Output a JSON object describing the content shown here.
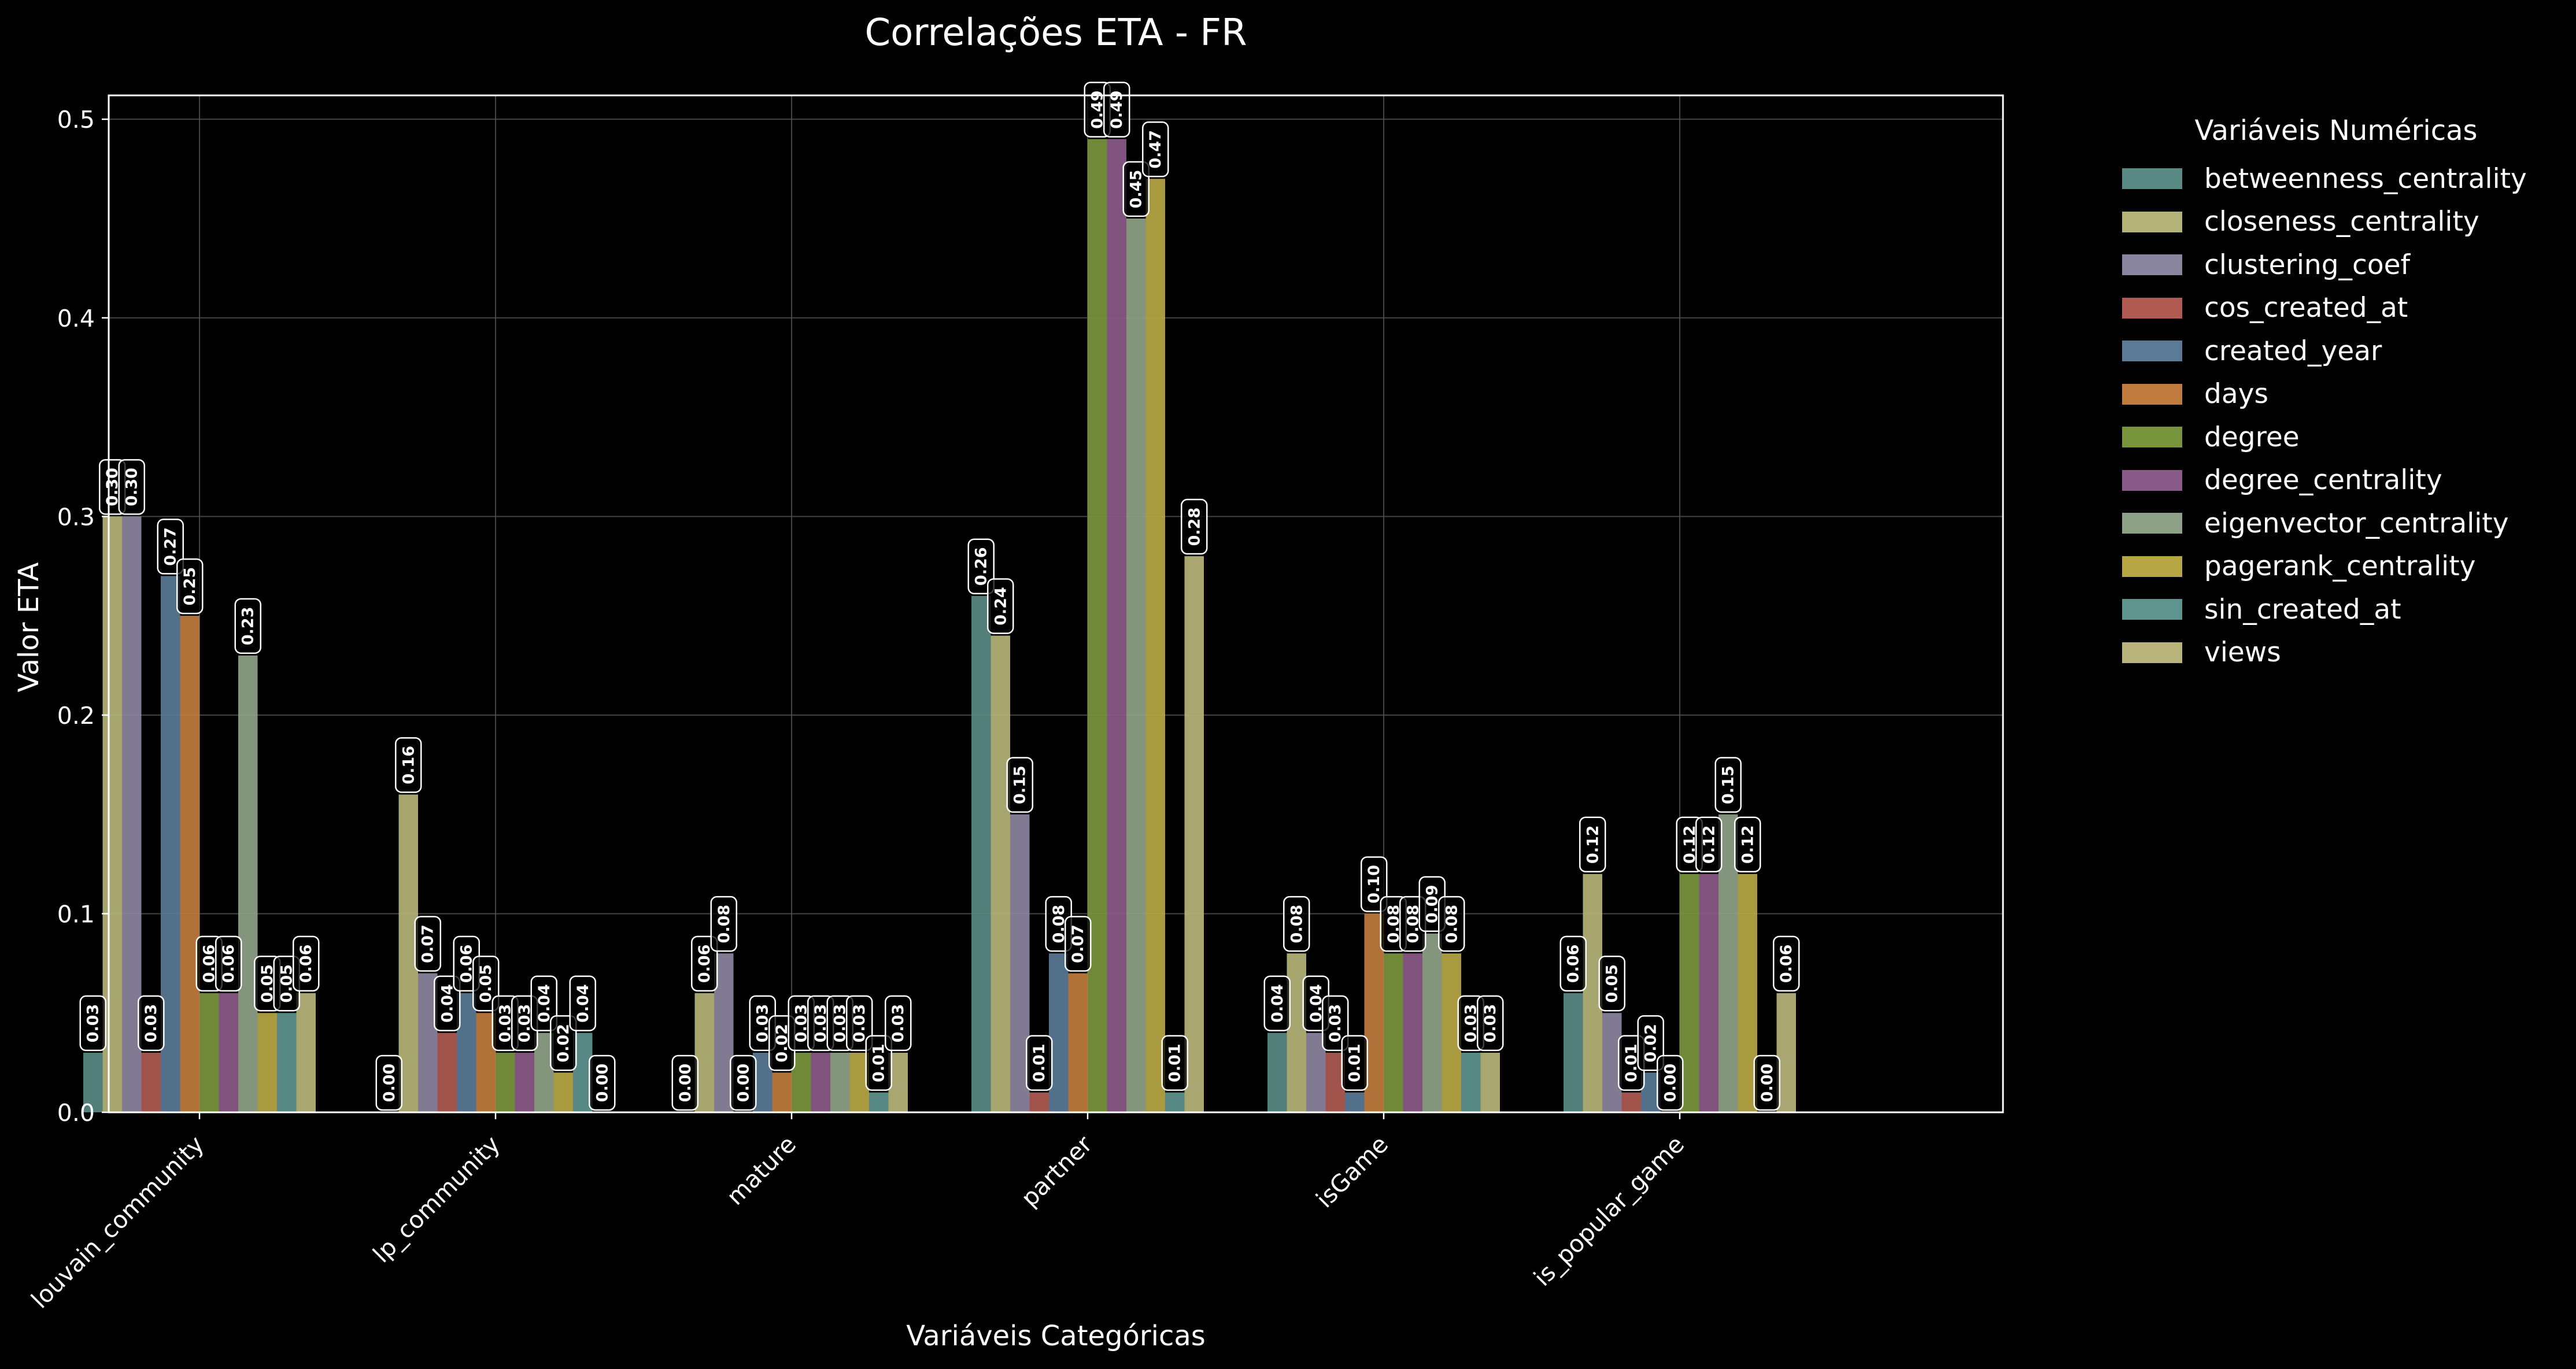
{
  "chart_data": {
    "type": "bar",
    "title": "Correlações ETA - FR",
    "xlabel": "Variáveis Categóricas",
    "ylabel": "Valor ETA",
    "ylim": [
      0,
      0.512
    ],
    "yticks": [
      "0.0",
      "0.1",
      "0.2",
      "0.3",
      "0.4",
      "0.5"
    ],
    "grid": true,
    "legend_title": "Variáveis Numéricas",
    "legend_position": "outside-right",
    "categories": [
      "louvain_community",
      "lp_community",
      "mature",
      "partner",
      "isGame",
      "is_popular_game"
    ],
    "series": [
      {
        "name": "betweenness_centrality",
        "color": "#5a8a84",
        "values": [
          0.03,
          0.0,
          0.0,
          0.26,
          0.04,
          0.06
        ]
      },
      {
        "name": "closeness_centrality",
        "color": "#b5b478",
        "values": [
          0.3,
          0.16,
          0.06,
          0.24,
          0.08,
          0.12
        ]
      },
      {
        "name": "clustering_coef",
        "color": "#8b86a0",
        "values": [
          0.3,
          0.07,
          0.08,
          0.15,
          0.04,
          0.05
        ]
      },
      {
        "name": "cos_created_at",
        "color": "#b05a52",
        "values": [
          0.03,
          0.04,
          0.0,
          0.01,
          0.03,
          0.01
        ]
      },
      {
        "name": "created_year",
        "color": "#5a7a96",
        "values": [
          0.27,
          0.06,
          0.03,
          0.08,
          0.01,
          0.02
        ]
      },
      {
        "name": "days",
        "color": "#c07c3e",
        "values": [
          0.25,
          0.05,
          0.02,
          0.07,
          0.1,
          0.0
        ]
      },
      {
        "name": "degree",
        "color": "#78953e",
        "values": [
          0.06,
          0.03,
          0.03,
          0.49,
          0.08,
          0.12
        ]
      },
      {
        "name": "degree_centrality",
        "color": "#8a5a88",
        "values": [
          0.06,
          0.03,
          0.03,
          0.49,
          0.08,
          0.12
        ]
      },
      {
        "name": "eigenvector_centrality",
        "color": "#8ea288",
        "values": [
          0.23,
          0.04,
          0.03,
          0.45,
          0.09,
          0.15
        ]
      },
      {
        "name": "pagerank_centrality",
        "color": "#b7a644",
        "values": [
          0.05,
          0.02,
          0.03,
          0.47,
          0.08,
          0.12
        ]
      },
      {
        "name": "sin_created_at",
        "color": "#5f948e",
        "values": [
          0.05,
          0.04,
          0.01,
          0.01,
          0.03,
          0.0
        ]
      },
      {
        "name": "views",
        "color": "#b8b47c",
        "values": [
          0.06,
          0.0,
          0.03,
          0.28,
          0.03,
          0.06
        ]
      }
    ]
  }
}
